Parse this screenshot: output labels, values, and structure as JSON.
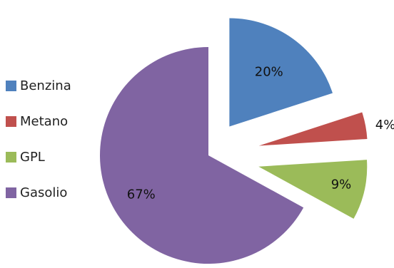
{
  "chart_data": {
    "type": "pie",
    "title": "",
    "exploded": true,
    "legend_position": "left",
    "slices": [
      {
        "label": "Benzina",
        "value": 20,
        "display": "20%",
        "color": "#4F81BD"
      },
      {
        "label": "Metano",
        "value": 4,
        "display": "4%",
        "color": "#C0504D"
      },
      {
        "label": "GPL",
        "value": 9,
        "display": "9%",
        "color": "#9BBB59"
      },
      {
        "label": "Gasolio",
        "value": 67,
        "display": "67%",
        "color": "#8064A2"
      }
    ]
  }
}
